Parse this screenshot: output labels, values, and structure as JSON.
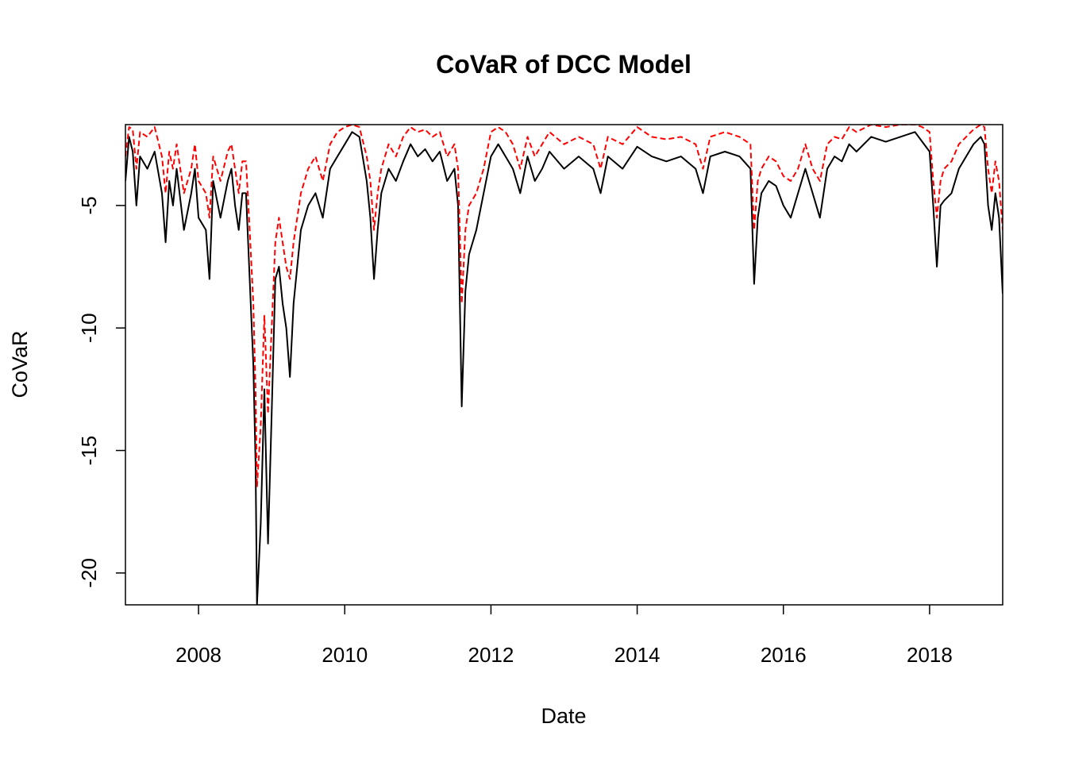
{
  "chart_data": {
    "type": "line",
    "title": "CoVaR of DCC Model",
    "xlabel": "Date",
    "ylabel": "CoVaR",
    "xlim": [
      2007.0,
      2019.0
    ],
    "ylim": [
      -21.3,
      -1.7
    ],
    "x_ticks": [
      2008,
      2010,
      2012,
      2014,
      2016,
      2018
    ],
    "x_tick_labels": [
      "2008",
      "2010",
      "2012",
      "2014",
      "2016",
      "2018"
    ],
    "y_ticks": [
      -20,
      -15,
      -10,
      -5
    ],
    "y_tick_labels": [
      "-20",
      "-15",
      "-10",
      "-5"
    ],
    "grid": false,
    "legend": "none",
    "series": [
      {
        "color": "#000000",
        "style": "solid",
        "x": [
          2007.0,
          2007.05,
          2007.1,
          2007.15,
          2007.2,
          2007.3,
          2007.4,
          2007.5,
          2007.55,
          2007.6,
          2007.65,
          2007.7,
          2007.8,
          2007.9,
          2007.95,
          2008.0,
          2008.1,
          2008.15,
          2008.2,
          2008.3,
          2008.4,
          2008.45,
          2008.5,
          2008.55,
          2008.6,
          2008.65,
          2008.7,
          2008.75,
          2008.78,
          2008.8,
          2008.85,
          2008.9,
          2008.95,
          2009.0,
          2009.05,
          2009.1,
          2009.15,
          2009.2,
          2009.25,
          2009.3,
          2009.4,
          2009.5,
          2009.6,
          2009.7,
          2009.8,
          2009.9,
          2010.0,
          2010.1,
          2010.2,
          2010.3,
          2010.35,
          2010.4,
          2010.45,
          2010.5,
          2010.6,
          2010.7,
          2010.8,
          2010.9,
          2011.0,
          2011.1,
          2011.2,
          2011.3,
          2011.4,
          2011.5,
          2011.55,
          2011.6,
          2011.65,
          2011.7,
          2011.8,
          2011.9,
          2012.0,
          2012.1,
          2012.2,
          2012.3,
          2012.4,
          2012.5,
          2012.6,
          2012.7,
          2012.8,
          2013.0,
          2013.2,
          2013.4,
          2013.5,
          2013.6,
          2013.8,
          2014.0,
          2014.2,
          2014.4,
          2014.6,
          2014.8,
          2014.9,
          2015.0,
          2015.2,
          2015.4,
          2015.55,
          2015.6,
          2015.65,
          2015.7,
          2015.8,
          2015.9,
          2016.0,
          2016.1,
          2016.2,
          2016.3,
          2016.4,
          2016.5,
          2016.6,
          2016.7,
          2016.8,
          2016.9,
          2017.0,
          2017.2,
          2017.4,
          2017.6,
          2017.8,
          2017.9,
          2018.0,
          2018.05,
          2018.1,
          2018.15,
          2018.2,
          2018.3,
          2018.4,
          2018.5,
          2018.6,
          2018.7,
          2018.75,
          2018.8,
          2018.85,
          2018.9,
          2018.95,
          2019.0
        ],
        "y": [
          -4.0,
          -2.2,
          -2.8,
          -5.0,
          -3.0,
          -3.5,
          -2.8,
          -4.5,
          -6.5,
          -4.0,
          -5.0,
          -3.5,
          -6.0,
          -4.5,
          -3.5,
          -5.5,
          -6.0,
          -8.0,
          -4.0,
          -5.5,
          -4.0,
          -3.5,
          -5.0,
          -6.0,
          -4.5,
          -4.5,
          -8.0,
          -11.5,
          -15.5,
          -21.3,
          -18.0,
          -12.5,
          -18.8,
          -13.5,
          -8.0,
          -7.5,
          -9.0,
          -10.0,
          -12.0,
          -9.0,
          -6.0,
          -5.0,
          -4.5,
          -5.5,
          -3.5,
          -3.0,
          -2.5,
          -2.0,
          -2.2,
          -4.0,
          -5.5,
          -8.0,
          -6.0,
          -4.5,
          -3.5,
          -4.0,
          -3.2,
          -2.5,
          -3.0,
          -2.7,
          -3.2,
          -2.8,
          -4.0,
          -3.5,
          -5.0,
          -13.2,
          -8.5,
          -7.0,
          -6.0,
          -4.5,
          -3.0,
          -2.5,
          -3.0,
          -3.5,
          -4.5,
          -3.0,
          -4.0,
          -3.5,
          -2.8,
          -3.5,
          -3.0,
          -3.5,
          -4.5,
          -3.0,
          -3.5,
          -2.6,
          -3.0,
          -3.2,
          -3.0,
          -3.5,
          -4.5,
          -3.0,
          -2.8,
          -3.0,
          -3.5,
          -8.2,
          -5.5,
          -4.5,
          -4.0,
          -4.2,
          -5.0,
          -5.5,
          -4.5,
          -3.5,
          -4.5,
          -5.5,
          -3.5,
          -3.0,
          -3.2,
          -2.5,
          -2.8,
          -2.2,
          -2.4,
          -2.2,
          -2.0,
          -2.4,
          -2.8,
          -5.0,
          -7.5,
          -5.0,
          -4.8,
          -4.5,
          -3.5,
          -3.0,
          -2.5,
          -2.2,
          -2.5,
          -5.0,
          -6.0,
          -4.5,
          -5.5,
          -8.6
        ]
      },
      {
        "color": "#ff0000",
        "style": "dashed",
        "x": [
          2007.0,
          2007.05,
          2007.1,
          2007.15,
          2007.2,
          2007.3,
          2007.4,
          2007.5,
          2007.55,
          2007.6,
          2007.65,
          2007.7,
          2007.8,
          2007.9,
          2007.95,
          2008.0,
          2008.1,
          2008.15,
          2008.2,
          2008.3,
          2008.4,
          2008.45,
          2008.5,
          2008.55,
          2008.6,
          2008.65,
          2008.7,
          2008.75,
          2008.78,
          2008.8,
          2008.85,
          2008.9,
          2008.95,
          2009.0,
          2009.05,
          2009.1,
          2009.15,
          2009.2,
          2009.25,
          2009.3,
          2009.4,
          2009.5,
          2009.6,
          2009.7,
          2009.8,
          2009.9,
          2010.0,
          2010.1,
          2010.2,
          2010.3,
          2010.35,
          2010.4,
          2010.45,
          2010.5,
          2010.6,
          2010.7,
          2010.8,
          2010.9,
          2011.0,
          2011.1,
          2011.2,
          2011.3,
          2011.4,
          2011.5,
          2011.55,
          2011.6,
          2011.65,
          2011.7,
          2011.8,
          2011.9,
          2012.0,
          2012.1,
          2012.2,
          2012.3,
          2012.4,
          2012.5,
          2012.6,
          2012.7,
          2012.8,
          2013.0,
          2013.2,
          2013.4,
          2013.5,
          2013.6,
          2013.8,
          2014.0,
          2014.2,
          2014.4,
          2014.6,
          2014.8,
          2014.9,
          2015.0,
          2015.2,
          2015.4,
          2015.55,
          2015.6,
          2015.65,
          2015.7,
          2015.8,
          2015.9,
          2016.0,
          2016.1,
          2016.2,
          2016.3,
          2016.4,
          2016.5,
          2016.6,
          2016.7,
          2016.8,
          2016.9,
          2017.0,
          2017.2,
          2017.4,
          2017.6,
          2017.8,
          2017.9,
          2018.0,
          2018.05,
          2018.1,
          2018.15,
          2018.2,
          2018.3,
          2018.4,
          2018.5,
          2018.6,
          2018.7,
          2018.75,
          2018.8,
          2018.85,
          2018.9,
          2018.95,
          2019.0
        ],
        "y": [
          -3.0,
          -1.8,
          -1.9,
          -3.5,
          -2.0,
          -2.2,
          -1.8,
          -3.0,
          -4.5,
          -2.8,
          -3.5,
          -2.5,
          -4.5,
          -3.5,
          -2.5,
          -4.0,
          -4.5,
          -5.5,
          -3.0,
          -4.0,
          -2.8,
          -2.5,
          -3.5,
          -4.5,
          -3.2,
          -3.2,
          -6.0,
          -9.0,
          -12.5,
          -16.5,
          -14.0,
          -9.5,
          -13.5,
          -10.0,
          -6.5,
          -5.5,
          -6.5,
          -7.5,
          -8.0,
          -6.5,
          -4.5,
          -3.5,
          -3.0,
          -4.0,
          -2.5,
          -2.0,
          -1.8,
          -1.7,
          -1.8,
          -3.0,
          -4.0,
          -6.0,
          -4.5,
          -3.5,
          -2.5,
          -3.0,
          -2.2,
          -1.8,
          -2.0,
          -1.9,
          -2.2,
          -2.0,
          -3.0,
          -2.5,
          -3.5,
          -9.0,
          -6.0,
          -5.0,
          -4.5,
          -3.5,
          -2.0,
          -1.8,
          -2.0,
          -2.5,
          -3.5,
          -2.2,
          -3.0,
          -2.5,
          -2.0,
          -2.5,
          -2.2,
          -2.5,
          -3.5,
          -2.2,
          -2.5,
          -1.8,
          -2.2,
          -2.3,
          -2.2,
          -2.5,
          -3.5,
          -2.2,
          -2.0,
          -2.2,
          -2.5,
          -6.0,
          -4.0,
          -3.5,
          -3.0,
          -3.2,
          -3.8,
          -4.0,
          -3.5,
          -2.5,
          -3.5,
          -4.0,
          -2.5,
          -2.2,
          -2.3,
          -1.8,
          -2.0,
          -1.7,
          -1.8,
          -1.7,
          -1.7,
          -1.8,
          -2.0,
          -4.0,
          -5.5,
          -4.0,
          -3.5,
          -3.2,
          -2.5,
          -2.2,
          -1.9,
          -1.7,
          -1.8,
          -3.5,
          -4.5,
          -3.2,
          -4.0,
          -6.0
        ]
      }
    ]
  }
}
